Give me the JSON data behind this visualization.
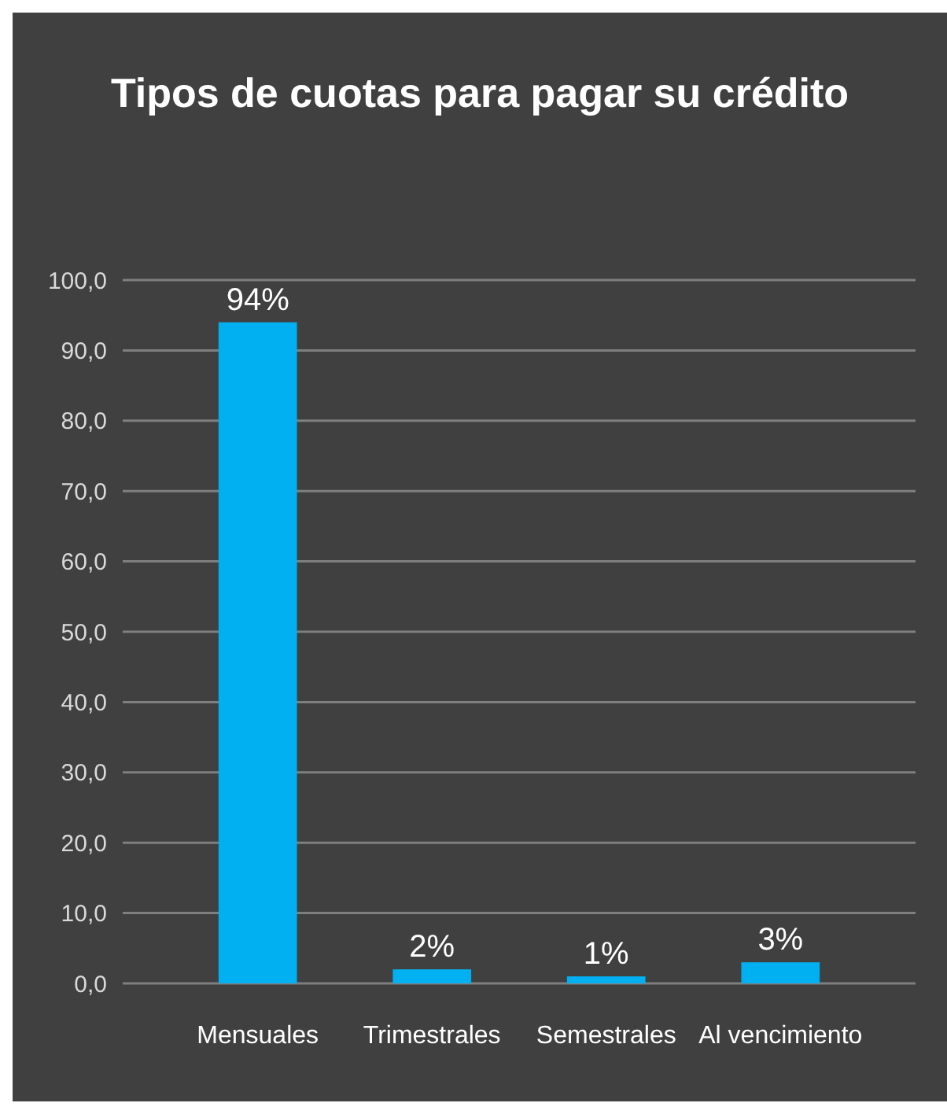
{
  "chart_data": {
    "type": "bar",
    "title": "Tipos de cuotas para pagar su crédito",
    "categories": [
      "Mensuales",
      "Trimestrales",
      "Semestrales",
      "Al vencimiento"
    ],
    "values": [
      94,
      2,
      1,
      3
    ],
    "color": "#00b0f0",
    "value_labels": [
      "94%",
      "2%",
      "1%",
      "3%"
    ],
    "ylim": [
      0,
      100
    ],
    "yticks": [
      {
        "value": 0,
        "label": "0,0"
      },
      {
        "value": 10,
        "label": "10,0"
      },
      {
        "value": 20,
        "label": "20,0"
      },
      {
        "value": 30,
        "label": "30,0"
      },
      {
        "value": 40,
        "label": "40,0"
      },
      {
        "value": 50,
        "label": "50,0"
      },
      {
        "value": 60,
        "label": "60,0"
      },
      {
        "value": 70,
        "label": "70,0"
      },
      {
        "value": 80,
        "label": "80,0"
      },
      {
        "value": 90,
        "label": "90,0"
      },
      {
        "value": 100,
        "label": "100,0"
      }
    ],
    "grid": "y"
  }
}
